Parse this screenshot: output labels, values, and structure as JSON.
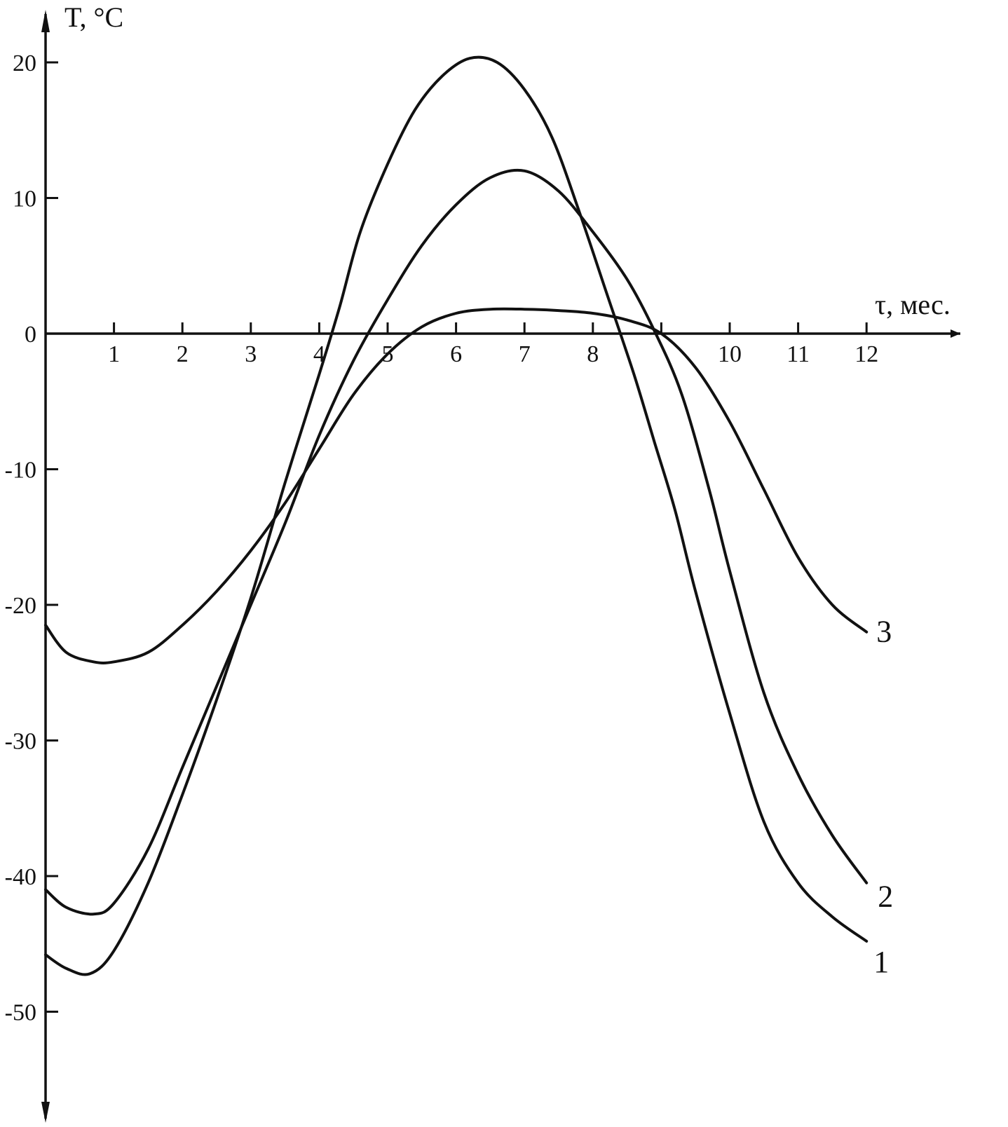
{
  "chart_data": {
    "type": "line",
    "title": "",
    "ylabel": "T, °C",
    "xlabel": "τ, мес.",
    "xlim": [
      0,
      12.5
    ],
    "ylim": [
      -55,
      23
    ],
    "x_ticks": [
      1,
      2,
      3,
      4,
      5,
      6,
      7,
      8,
      10,
      11,
      12
    ],
    "x_tick_marks": [
      1,
      2,
      3,
      4,
      5,
      6,
      7,
      8,
      9,
      10,
      11,
      12
    ],
    "y_ticks": [
      20,
      10,
      0,
      -10,
      -20,
      -30,
      -40,
      -50
    ],
    "grid": false,
    "legend": "labels at curve ends",
    "series": [
      {
        "name": "1",
        "x": [
          0,
          0.3,
          0.65,
          1.0,
          1.5,
          2.0,
          2.5,
          3.0,
          3.5,
          4.0,
          4.3,
          4.6,
          5.0,
          5.4,
          5.8,
          6.2,
          6.6,
          7.0,
          7.4,
          7.8,
          8.2,
          8.6,
          8.9,
          9.2,
          9.5,
          10.0,
          10.5,
          11.0,
          11.5,
          12.0
        ],
        "y": [
          -45.8,
          -46.8,
          -47.2,
          -45.5,
          -40.5,
          -34.0,
          -27.0,
          -19.5,
          -11.0,
          -3.0,
          2.0,
          7.5,
          12.5,
          16.5,
          19.0,
          20.3,
          20.0,
          18.0,
          14.5,
          9.0,
          3.0,
          -3.0,
          -8.0,
          -13.0,
          -19.0,
          -28.0,
          -36.0,
          -40.5,
          -43.0,
          -44.8
        ]
      },
      {
        "name": "2",
        "x": [
          0,
          0.3,
          0.7,
          1.0,
          1.5,
          2.0,
          2.5,
          3.0,
          3.5,
          4.0,
          4.5,
          5.0,
          5.5,
          6.0,
          6.5,
          7.0,
          7.5,
          8.0,
          8.5,
          8.9,
          9.3,
          9.7,
          10.0,
          10.5,
          11.0,
          11.5,
          12.0
        ],
        "y": [
          -41.0,
          -42.3,
          -42.8,
          -42.0,
          -38.0,
          -32.0,
          -26.0,
          -20.0,
          -14.0,
          -7.5,
          -2.0,
          2.5,
          6.5,
          9.5,
          11.5,
          12.0,
          10.5,
          7.5,
          4.0,
          0.2,
          -4.5,
          -11.5,
          -17.5,
          -26.5,
          -32.5,
          -37.0,
          -40.5
        ]
      },
      {
        "name": "3",
        "x": [
          0,
          0.3,
          0.7,
          1.0,
          1.5,
          2.0,
          2.5,
          3.0,
          3.5,
          4.0,
          4.5,
          5.0,
          5.5,
          6.0,
          6.5,
          7.0,
          7.5,
          8.0,
          8.5,
          9.0,
          9.5,
          10.0,
          10.5,
          11.0,
          11.5,
          12.0
        ],
        "y": [
          -21.5,
          -23.5,
          -24.2,
          -24.2,
          -23.5,
          -21.5,
          -19.0,
          -16.0,
          -12.5,
          -8.5,
          -4.5,
          -1.5,
          0.5,
          1.5,
          1.8,
          1.8,
          1.7,
          1.5,
          1.0,
          0.0,
          -2.5,
          -6.5,
          -11.5,
          -16.5,
          -20.0,
          -22.0
        ]
      }
    ]
  }
}
